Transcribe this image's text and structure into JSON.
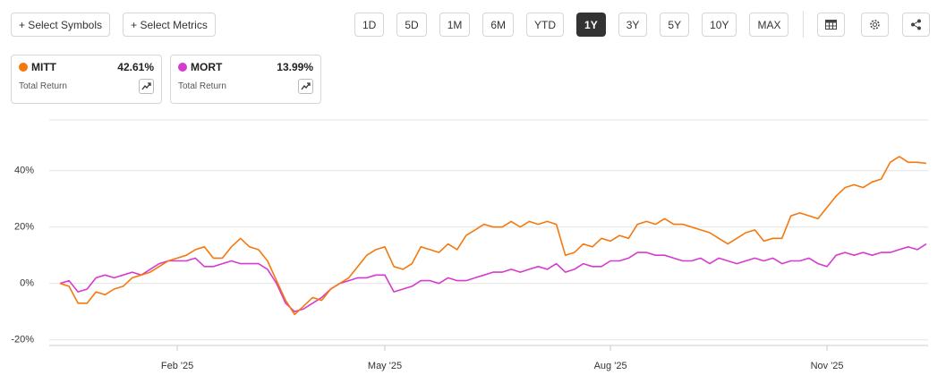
{
  "toolbar": {
    "select_symbols": "+ Select Symbols",
    "select_metrics": "+ Select Metrics",
    "ranges": [
      "1D",
      "5D",
      "1M",
      "6M",
      "YTD",
      "1Y",
      "3Y",
      "5Y",
      "10Y",
      "MAX"
    ],
    "active_range": "1Y"
  },
  "legend_cards": [
    {
      "symbol": "MITT",
      "value": "42.61%",
      "label": "Total Return"
    },
    {
      "symbol": "MORT",
      "value": "13.99%",
      "label": "Total Return"
    }
  ],
  "chart_data": {
    "type": "line",
    "categories": [
      null,
      null,
      null,
      null,
      null,
      null,
      null,
      null,
      null,
      null,
      null,
      null,
      null,
      "Feb '25",
      null,
      null,
      null,
      null,
      null,
      null,
      null,
      null,
      null,
      null,
      null,
      null,
      null,
      null,
      null,
      null,
      null,
      null,
      null,
      null,
      null,
      null,
      "May '25",
      null,
      null,
      null,
      null,
      null,
      null,
      null,
      null,
      null,
      null,
      null,
      null,
      null,
      null,
      null,
      null,
      null,
      null,
      null,
      null,
      null,
      null,
      null,
      null,
      "Aug '25",
      null,
      null,
      null,
      null,
      null,
      null,
      null,
      null,
      null,
      null,
      null,
      null,
      null,
      null,
      null,
      null,
      null,
      null,
      null,
      null,
      null,
      null,
      null,
      "Nov '25",
      null,
      null,
      null,
      null,
      null,
      null,
      null,
      null,
      null,
      null,
      null
    ],
    "series": [
      {
        "name": "MITT",
        "color": "#f5780f",
        "values": [
          0,
          -1,
          -7,
          -7,
          -3,
          -4,
          -2,
          -1,
          2,
          3,
          4,
          6,
          8,
          9,
          10,
          12,
          13,
          9,
          9,
          13,
          16,
          13,
          12,
          8,
          1,
          -6,
          -11,
          -8,
          -5,
          -6,
          -2,
          0,
          2,
          6,
          10,
          12,
          13,
          6,
          5,
          7,
          13,
          12,
          11,
          14,
          12,
          17,
          19,
          21,
          20,
          20,
          22,
          20,
          22,
          21,
          22,
          21,
          10,
          11,
          14,
          13,
          16,
          15,
          17,
          16,
          21,
          22,
          21,
          23,
          21,
          21,
          20,
          19,
          18,
          16,
          14,
          16,
          18,
          19,
          15,
          16,
          16,
          24,
          25,
          24,
          23,
          27,
          31,
          34,
          35,
          34,
          36,
          37,
          43,
          45,
          43,
          43,
          42.61
        ]
      },
      {
        "name": "MORT",
        "color": "#d63bcf",
        "values": [
          0,
          1,
          -3,
          -2,
          2,
          3,
          2,
          3,
          4,
          3,
          5,
          7,
          8,
          8,
          8,
          9,
          6,
          6,
          7,
          8,
          7,
          7,
          7,
          5,
          0,
          -7,
          -10,
          -9,
          -7,
          -5,
          -2,
          0,
          1,
          2,
          2,
          3,
          3,
          -3,
          -2,
          -1,
          1,
          1,
          0,
          2,
          1,
          1,
          2,
          3,
          4,
          4,
          5,
          4,
          5,
          6,
          5,
          7,
          4,
          5,
          7,
          6,
          6,
          8,
          8,
          9,
          11,
          11,
          10,
          10,
          9,
          8,
          8,
          9,
          7,
          9,
          8,
          7,
          8,
          9,
          8,
          9,
          7,
          8,
          8,
          9,
          7,
          6,
          10,
          11,
          10,
          11,
          10,
          11,
          11,
          12,
          13,
          12,
          13.99
        ]
      }
    ],
    "ylim": [
      -22,
      58
    ],
    "yticks": [
      {
        "value": -20,
        "label": "-20%"
      },
      {
        "value": 0,
        "label": "0%"
      },
      {
        "value": 20,
        "label": "20%"
      },
      {
        "value": 40,
        "label": "40%"
      }
    ],
    "grid": true
  }
}
